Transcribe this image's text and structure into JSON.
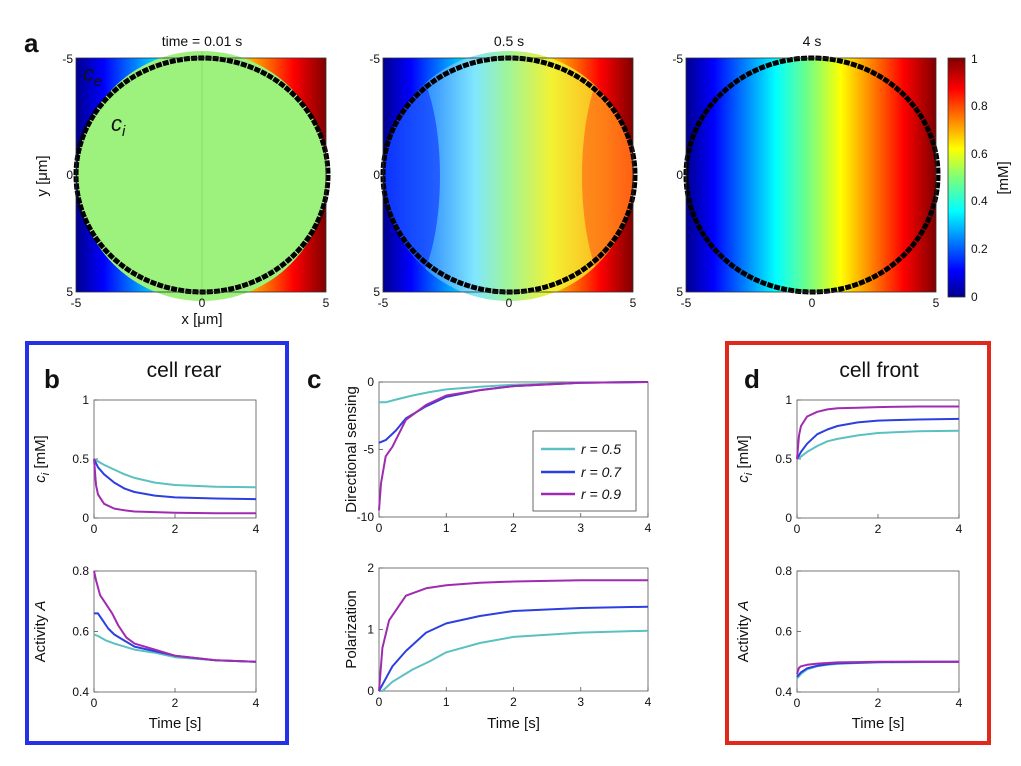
{
  "figure": {
    "panel_letters": [
      "a",
      "b",
      "c",
      "d"
    ],
    "box_titles": {
      "b": "cell rear",
      "d": "cell front"
    }
  },
  "chart_data": [
    {
      "id": "a",
      "type": "heatmap",
      "titles": [
        "time = 0.01 s",
        "0.5 s",
        "4 s"
      ],
      "xlabel": "x [μm]",
      "ylabel": "y [μm]",
      "xticks": [
        "-5",
        "0",
        "5"
      ],
      "yticks": [
        "-5",
        "0",
        "5"
      ],
      "xlim": [
        -5,
        5
      ],
      "ylim": [
        -5,
        5
      ],
      "cell_radius_um": 5,
      "annotations": [
        "c",
        "e",
        "c",
        "i"
      ],
      "colorbar": {
        "label": "[mM]",
        "ticks": [
          "0",
          "0.2",
          "0.4",
          "0.6",
          "0.8",
          "1"
        ],
        "range": [
          0,
          1
        ],
        "colormap": "jet"
      },
      "panels": [
        {
          "time_s": 0.01,
          "inside_mix": 0.0,
          "inside_value": 0.5
        },
        {
          "time_s": 0.5,
          "inside_mix": 0.7
        },
        {
          "time_s": 4,
          "inside_mix": 1.0
        }
      ]
    },
    {
      "id": "b-top",
      "type": "line",
      "ylabel": "c_i [mM]",
      "ylabel_base": "c",
      "ylabel_sub": "i",
      "ylabel_rest": " [mM]",
      "xlim": [
        0,
        4
      ],
      "ylim": [
        0,
        1
      ],
      "xticks": [
        "0",
        "2",
        "4"
      ],
      "yticks": [
        "0",
        "0.5",
        "1"
      ],
      "series": [
        {
          "name": "r = 0.5",
          "color": "#5bc0c2",
          "x": [
            0,
            0.1,
            0.25,
            0.5,
            0.75,
            1,
            1.5,
            2,
            3,
            4
          ],
          "y": [
            0.5,
            0.48,
            0.45,
            0.41,
            0.37,
            0.34,
            0.3,
            0.28,
            0.265,
            0.26
          ]
        },
        {
          "name": "r = 0.7",
          "color": "#2c3fe0",
          "x": [
            0,
            0.1,
            0.25,
            0.5,
            0.75,
            1,
            1.5,
            2,
            3,
            4
          ],
          "y": [
            0.5,
            0.43,
            0.37,
            0.3,
            0.25,
            0.22,
            0.19,
            0.175,
            0.165,
            0.16
          ]
        },
        {
          "name": "r = 0.9",
          "color": "#a02bb0",
          "x": [
            0,
            0.05,
            0.1,
            0.25,
            0.5,
            0.75,
            1,
            1.5,
            2,
            3,
            4
          ],
          "y": [
            0.5,
            0.28,
            0.2,
            0.12,
            0.08,
            0.065,
            0.055,
            0.05,
            0.045,
            0.04,
            0.04
          ]
        }
      ]
    },
    {
      "id": "b-bot",
      "type": "line",
      "ylabel": "Activity A",
      "xlabel": "Time [s]",
      "xlim": [
        0,
        4
      ],
      "ylim": [
        0.4,
        0.8
      ],
      "xticks": [
        "0",
        "2",
        "4"
      ],
      "yticks": [
        "0.4",
        "0.6",
        "0.8"
      ],
      "series": [
        {
          "name": "r = 0.5",
          "color": "#5bc0c2",
          "x": [
            0,
            0.1,
            0.3,
            0.5,
            0.75,
            1,
            1.5,
            2,
            3,
            4
          ],
          "y": [
            0.59,
            0.585,
            0.57,
            0.56,
            0.55,
            0.54,
            0.53,
            0.515,
            0.505,
            0.5
          ]
        },
        {
          "name": "r = 0.7",
          "color": "#2c3fe0",
          "x": [
            0,
            0.1,
            0.2,
            0.35,
            0.5,
            0.75,
            1,
            1.5,
            2,
            3,
            4
          ],
          "y": [
            0.66,
            0.66,
            0.64,
            0.61,
            0.59,
            0.57,
            0.55,
            0.535,
            0.52,
            0.505,
            0.5
          ]
        },
        {
          "name": "r = 0.9",
          "color": "#a02bb0",
          "x": [
            0,
            0.05,
            0.15,
            0.3,
            0.45,
            0.6,
            0.8,
            1,
            1.5,
            2,
            3,
            4
          ],
          "y": [
            0.8,
            0.77,
            0.72,
            0.69,
            0.66,
            0.62,
            0.58,
            0.56,
            0.54,
            0.52,
            0.505,
            0.5
          ]
        }
      ]
    },
    {
      "id": "c-top",
      "type": "line",
      "ylabel": "Directional sensing",
      "xlim": [
        0,
        4
      ],
      "ylim": [
        -10,
        0
      ],
      "xticks": [
        "0",
        "1",
        "2",
        "3",
        "4"
      ],
      "yticks": [
        "-10",
        "-5",
        "0"
      ],
      "legend": {
        "position": "center-right",
        "entries": [
          "r = 0.5",
          "r = 0.7",
          "r = 0.9"
        ]
      },
      "series": [
        {
          "name": "r = 0.5",
          "color": "#5bc0c2",
          "x": [
            0,
            0.1,
            0.25,
            0.5,
            0.75,
            1,
            1.5,
            2,
            3,
            4
          ],
          "y": [
            -1.5,
            -1.5,
            -1.3,
            -1.0,
            -0.75,
            -0.55,
            -0.35,
            -0.2,
            -0.05,
            0
          ]
        },
        {
          "name": "r = 0.7",
          "color": "#2c3fe0",
          "x": [
            0,
            0.1,
            0.25,
            0.4,
            0.7,
            1,
            1.5,
            2,
            3,
            4
          ],
          "y": [
            -4.5,
            -4.3,
            -3.6,
            -2.7,
            -1.8,
            -1.1,
            -0.6,
            -0.3,
            -0.05,
            0
          ]
        },
        {
          "name": "r = 0.9",
          "color": "#a02bb0",
          "x": [
            0,
            0.03,
            0.1,
            0.2,
            0.4,
            0.7,
            1,
            1.5,
            2,
            3,
            4
          ],
          "y": [
            -9.5,
            -7.5,
            -5.5,
            -4.8,
            -2.8,
            -1.7,
            -1.0,
            -0.6,
            -0.3,
            -0.05,
            0
          ]
        }
      ]
    },
    {
      "id": "c-bot",
      "type": "line",
      "ylabel": "Polarization",
      "xlabel": "Time [s]",
      "xlim": [
        0,
        4
      ],
      "ylim": [
        0,
        2
      ],
      "xticks": [
        "0",
        "1",
        "2",
        "3",
        "4"
      ],
      "yticks": [
        "0",
        "1",
        "2"
      ],
      "series": [
        {
          "name": "r = 0.5",
          "color": "#5bc0c2",
          "x": [
            0,
            0.05,
            0.2,
            0.5,
            0.75,
            1,
            1.5,
            2,
            3,
            4
          ],
          "y": [
            0,
            0,
            0.15,
            0.35,
            0.48,
            0.63,
            0.78,
            0.88,
            0.95,
            0.98
          ]
        },
        {
          "name": "r = 0.7",
          "color": "#2c3fe0",
          "x": [
            0,
            0.1,
            0.2,
            0.4,
            0.7,
            1,
            1.5,
            2,
            3,
            4
          ],
          "y": [
            0,
            0.2,
            0.4,
            0.65,
            0.95,
            1.1,
            1.22,
            1.3,
            1.35,
            1.37
          ]
        },
        {
          "name": "r = 0.9",
          "color": "#a02bb0",
          "x": [
            0,
            0.05,
            0.15,
            0.4,
            0.7,
            1,
            1.5,
            2,
            3,
            4
          ],
          "y": [
            0,
            0.7,
            1.15,
            1.55,
            1.67,
            1.72,
            1.76,
            1.78,
            1.8,
            1.8
          ]
        }
      ]
    },
    {
      "id": "d-top",
      "type": "line",
      "ylabel": "c_i [mM]",
      "ylabel_base": "c",
      "ylabel_sub": "i",
      "ylabel_rest": " [mM]",
      "xlim": [
        0,
        4
      ],
      "ylim": [
        0,
        1
      ],
      "xticks": [
        "0",
        "2",
        "4"
      ],
      "yticks": [
        "0",
        "0.5",
        "1"
      ],
      "series": [
        {
          "name": "r = 0.5",
          "color": "#5bc0c2",
          "x": [
            0,
            0.1,
            0.25,
            0.5,
            0.75,
            1,
            1.5,
            2,
            3,
            4
          ],
          "y": [
            0.5,
            0.52,
            0.56,
            0.61,
            0.65,
            0.67,
            0.7,
            0.72,
            0.735,
            0.74
          ]
        },
        {
          "name": "r = 0.7",
          "color": "#2c3fe0",
          "x": [
            0,
            0.1,
            0.25,
            0.5,
            0.75,
            1,
            1.5,
            2,
            3,
            4
          ],
          "y": [
            0.5,
            0.56,
            0.63,
            0.71,
            0.75,
            0.78,
            0.81,
            0.825,
            0.835,
            0.84
          ]
        },
        {
          "name": "r = 0.9",
          "color": "#a02bb0",
          "x": [
            0,
            0.05,
            0.1,
            0.25,
            0.5,
            0.75,
            1,
            1.5,
            2,
            3,
            4
          ],
          "y": [
            0.5,
            0.7,
            0.78,
            0.86,
            0.9,
            0.92,
            0.93,
            0.935,
            0.94,
            0.945,
            0.945
          ]
        }
      ]
    },
    {
      "id": "d-bot",
      "type": "line",
      "ylabel": "Activity A",
      "xlabel": "Time [s]",
      "xlim": [
        0,
        4
      ],
      "ylim": [
        0.4,
        0.8
      ],
      "xticks": [
        "0",
        "2",
        "4"
      ],
      "yticks": [
        "0.4",
        "0.6",
        "0.8"
      ],
      "series": [
        {
          "name": "r = 0.5",
          "color": "#5bc0c2",
          "x": [
            0,
            0.1,
            0.25,
            0.5,
            0.75,
            1,
            1.5,
            2,
            3,
            4
          ],
          "y": [
            0.445,
            0.46,
            0.475,
            0.485,
            0.49,
            0.493,
            0.496,
            0.498,
            0.499,
            0.5
          ]
        },
        {
          "name": "r = 0.7",
          "color": "#2c3fe0",
          "x": [
            0,
            0.1,
            0.25,
            0.5,
            0.75,
            1,
            1.5,
            2,
            3,
            4
          ],
          "y": [
            0.45,
            0.465,
            0.478,
            0.487,
            0.492,
            0.495,
            0.497,
            0.499,
            0.5,
            0.5
          ]
        },
        {
          "name": "r = 0.9",
          "color": "#a02bb0",
          "x": [
            0,
            0.05,
            0.1,
            0.25,
            0.5,
            0.75,
            1,
            1.5,
            2,
            3,
            4
          ],
          "y": [
            0.46,
            0.48,
            0.485,
            0.49,
            0.494,
            0.496,
            0.498,
            0.499,
            0.5,
            0.5,
            0.5
          ]
        }
      ]
    }
  ]
}
